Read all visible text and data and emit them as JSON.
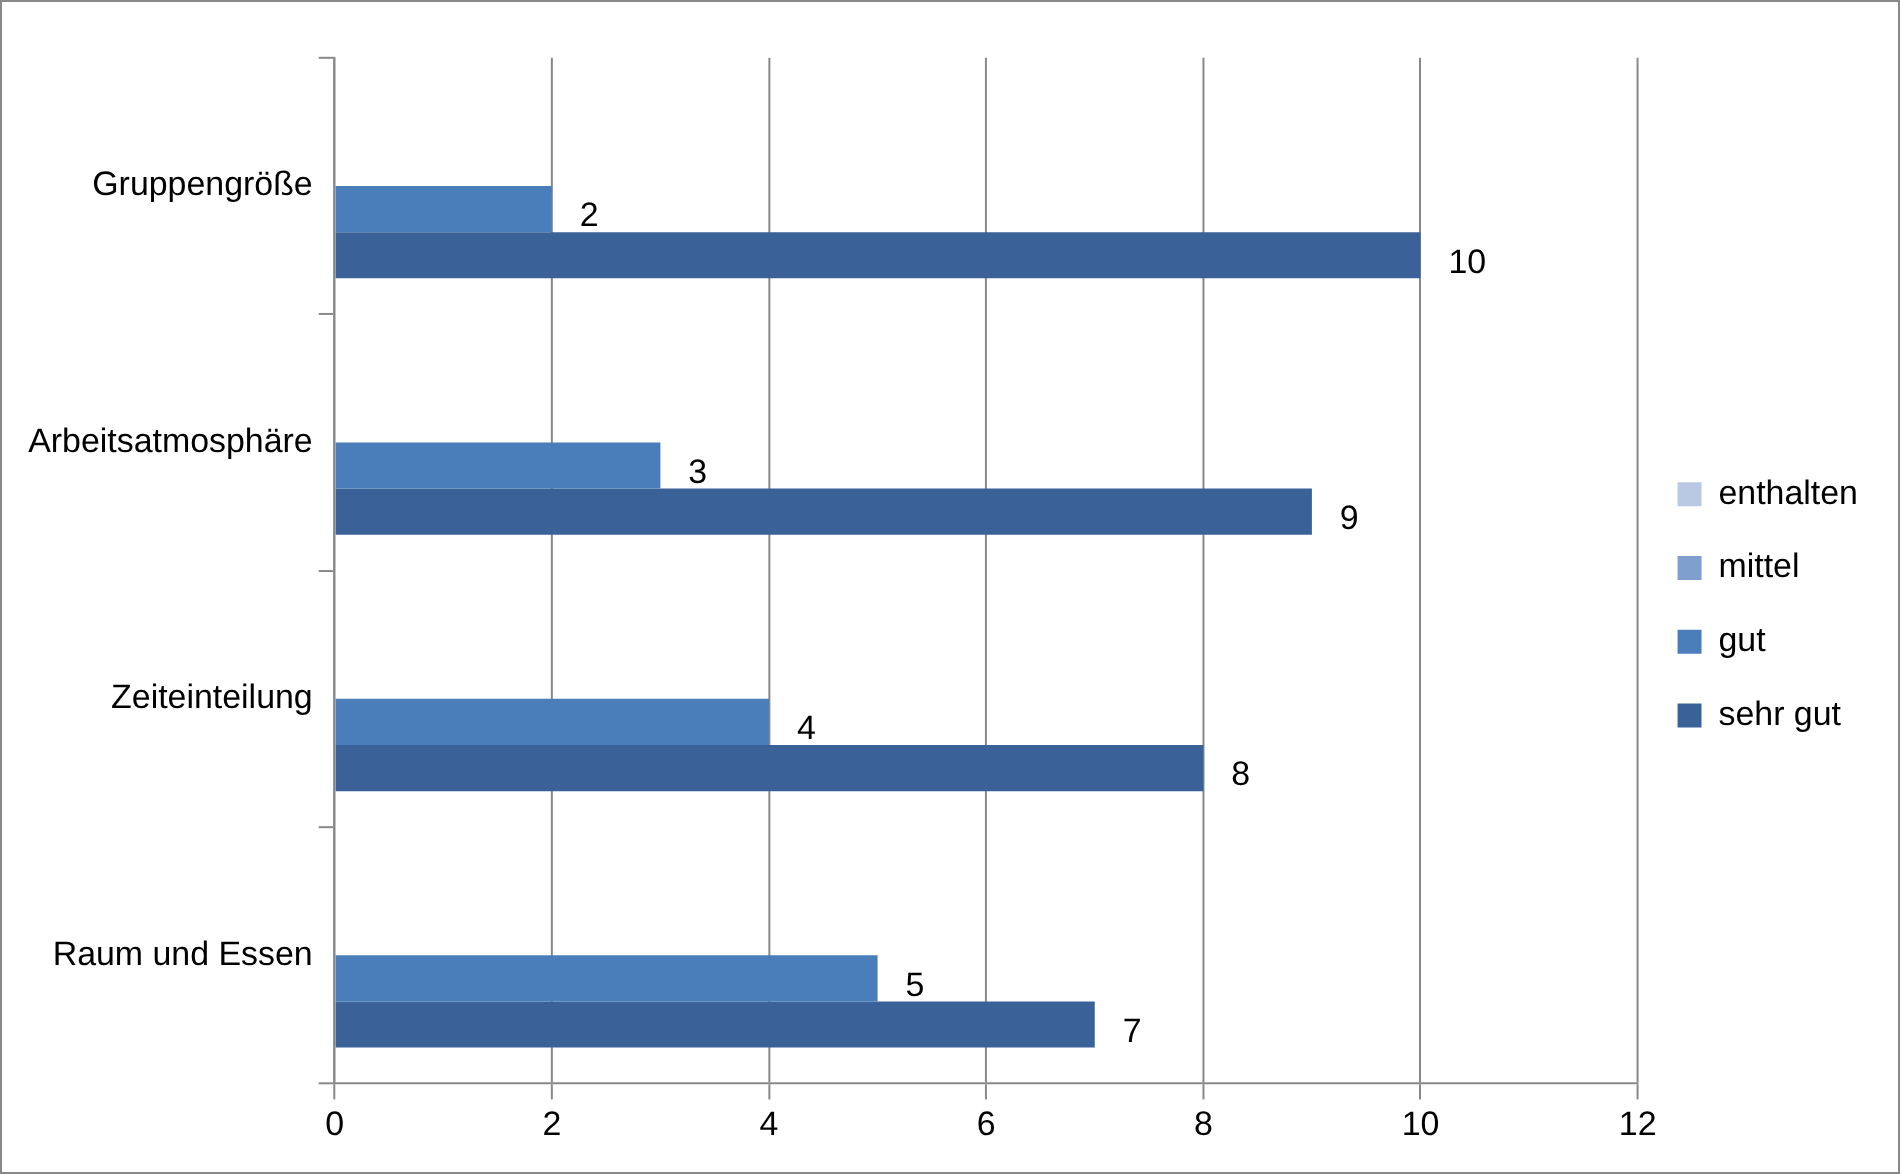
{
  "chart_data": {
    "type": "bar",
    "orientation": "horizontal",
    "categories": [
      "Gruppengröße",
      "Arbeitsatmosphäre",
      "Zeiteinteilung",
      "Raum und Essen"
    ],
    "series": [
      {
        "name": "enthalten",
        "color": "#b9c9e3",
        "values": [
          null,
          null,
          null,
          null
        ]
      },
      {
        "name": "mittel",
        "color": "#7f9fcf",
        "values": [
          null,
          null,
          null,
          null
        ]
      },
      {
        "name": "gut",
        "color": "#4a7ebb",
        "values": [
          2,
          3,
          4,
          5
        ]
      },
      {
        "name": "sehr gut",
        "color": "#3a6298",
        "values": [
          10,
          9,
          8,
          7
        ]
      }
    ],
    "xlim": [
      0,
      12
    ],
    "xticks": [
      0,
      2,
      4,
      6,
      8,
      10,
      12
    ],
    "grid": "x",
    "legend": "right",
    "data_labels": true
  }
}
